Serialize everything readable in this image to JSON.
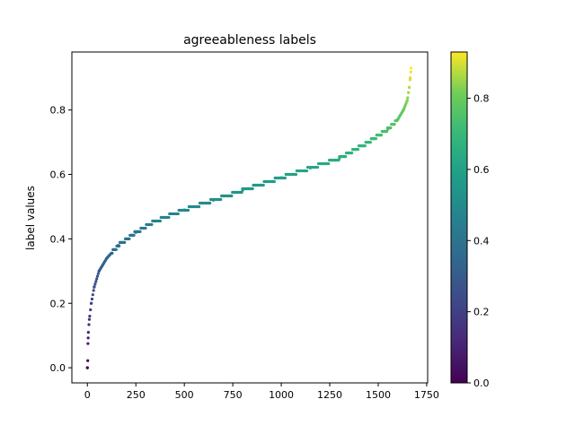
{
  "chart_data": {
    "type": "scatter",
    "title": "agreeableness labels",
    "xlabel": "",
    "ylabel": "label values",
    "xlim": [
      -80,
      1755
    ],
    "ylim": [
      -0.047,
      0.98
    ],
    "xticks": [
      0,
      250,
      500,
      750,
      1000,
      1250,
      1500,
      1750
    ],
    "yticks": [
      0.0,
      0.2,
      0.4,
      0.6,
      0.8
    ],
    "colormap": "viridis",
    "colorbar": {
      "range": [
        0.0,
        0.93
      ],
      "ticks": [
        0.0,
        0.2,
        0.4,
        0.6,
        0.8
      ]
    },
    "grid": false,
    "legend": "none",
    "marker_size_note": "small dots",
    "curve": {
      "description": "sorted label values, one point per sample index",
      "n_points": 1670,
      "points": [
        [
          0,
          0.0
        ],
        [
          2,
          0.022
        ],
        [
          3,
          0.075
        ],
        [
          5,
          0.11
        ],
        [
          10,
          0.15
        ],
        [
          20,
          0.2
        ],
        [
          35,
          0.25
        ],
        [
          60,
          0.3
        ],
        [
          100,
          0.34
        ],
        [
          160,
          0.38
        ],
        [
          250,
          0.42
        ],
        [
          350,
          0.455
        ],
        [
          500,
          0.49
        ],
        [
          650,
          0.52
        ],
        [
          800,
          0.55
        ],
        [
          1000,
          0.59
        ],
        [
          1150,
          0.62
        ],
        [
          1300,
          0.65
        ],
        [
          1450,
          0.7
        ],
        [
          1550,
          0.74
        ],
        [
          1600,
          0.77
        ],
        [
          1630,
          0.8
        ],
        [
          1650,
          0.83
        ],
        [
          1660,
          0.87
        ],
        [
          1665,
          0.9
        ],
        [
          1670,
          0.93
        ]
      ]
    }
  }
}
